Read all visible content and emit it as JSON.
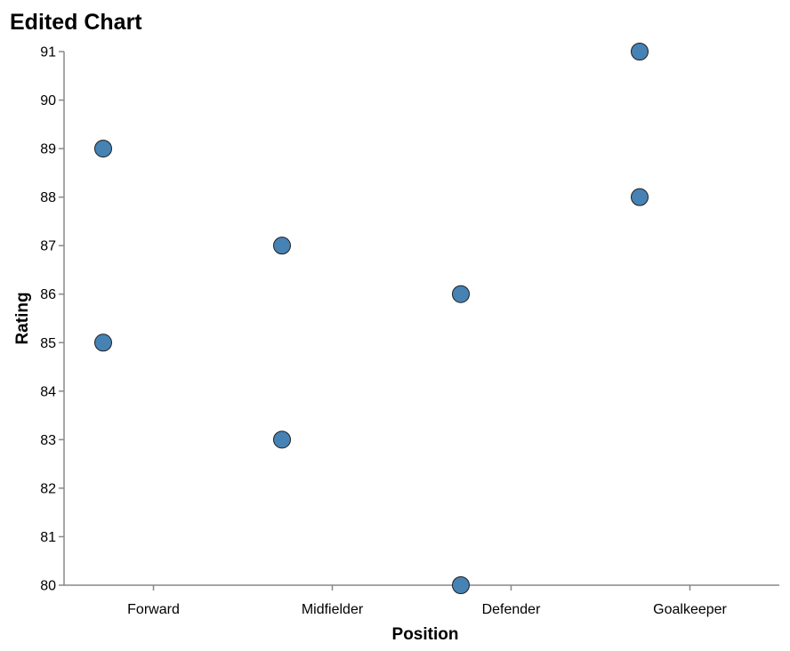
{
  "chart_data": {
    "type": "scatter",
    "title": "Edited Chart",
    "xlabel": "Position",
    "ylabel": "Rating",
    "categories": [
      "Forward",
      "Midfielder",
      "Defender",
      "Goalkeeper"
    ],
    "ylim": [
      80,
      91
    ],
    "y_ticks": [
      80,
      81,
      82,
      83,
      84,
      85,
      86,
      87,
      88,
      89,
      90,
      91
    ],
    "points": [
      {
        "x": "Forward",
        "y": 89
      },
      {
        "x": "Forward",
        "y": 85
      },
      {
        "x": "Midfielder",
        "y": 87
      },
      {
        "x": "Midfielder",
        "y": 83
      },
      {
        "x": "Defender",
        "y": 86
      },
      {
        "x": "Defender",
        "y": 80
      },
      {
        "x": "Goalkeeper",
        "y": 91
      },
      {
        "x": "Goalkeeper",
        "y": 88
      }
    ],
    "point_color": "#4682b4",
    "grid": false
  }
}
